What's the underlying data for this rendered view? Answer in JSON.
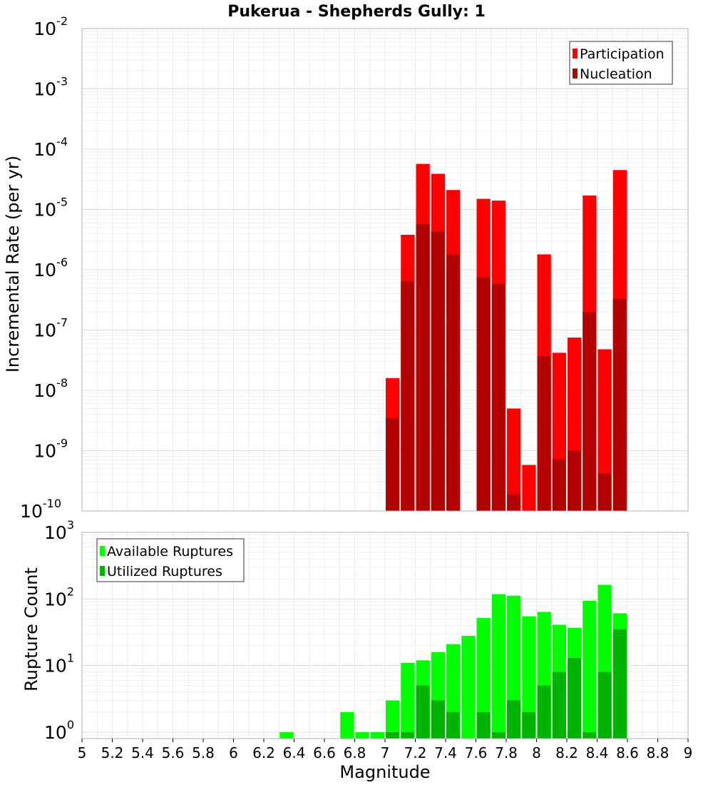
{
  "chart_data": [
    {
      "type": "bar",
      "title": "Pukerua - Shepherds Gully: 1",
      "xlabel": "Magnitude",
      "ylabel": "Incremental Rate (per yr)",
      "yscale": "log",
      "xlim": [
        5,
        9
      ],
      "ylim": [
        1e-10,
        0.01
      ],
      "grid": true,
      "legend_position": "top-right",
      "x_ticks": [
        "5",
        "5.2",
        "5.4",
        "5.6",
        "5.8",
        "6",
        "6.2",
        "6.4",
        "6.6",
        "6.8",
        "7",
        "7.2",
        "7.4",
        "7.6",
        "7.8",
        "8",
        "8.2",
        "8.4",
        "8.6",
        "8.8",
        "9"
      ],
      "y_ticks": [
        {
          "base": "10",
          "exp": "-10",
          "value": 1e-10
        },
        {
          "base": "10",
          "exp": "-9",
          "value": 1e-09
        },
        {
          "base": "10",
          "exp": "-8",
          "value": 1e-08
        },
        {
          "base": "10",
          "exp": "-7",
          "value": 1e-07
        },
        {
          "base": "10",
          "exp": "-6",
          "value": 1e-06
        },
        {
          "base": "10",
          "exp": "-5",
          "value": 1e-05
        },
        {
          "base": "10",
          "exp": "-4",
          "value": 0.0001
        },
        {
          "base": "10",
          "exp": "-3",
          "value": 0.001
        },
        {
          "base": "10",
          "exp": "-2",
          "value": 0.01
        }
      ],
      "series": [
        {
          "name": "Participation",
          "color": "#ff0000",
          "points": [
            {
              "x": 7.0,
              "y": 1.6e-08
            },
            {
              "x": 7.1,
              "y": 3.8e-06
            },
            {
              "x": 7.2,
              "y": 5.7e-05
            },
            {
              "x": 7.3,
              "y": 3.9e-05
            },
            {
              "x": 7.4,
              "y": 2.1e-05
            },
            {
              "x": 7.6,
              "y": 1.5e-05
            },
            {
              "x": 7.7,
              "y": 1.4e-05
            },
            {
              "x": 7.8,
              "y": 5e-09
            },
            {
              "x": 7.9,
              "y": 5.8e-10
            },
            {
              "x": 8.0,
              "y": 1.8e-06
            },
            {
              "x": 8.1,
              "y": 4.2e-08
            },
            {
              "x": 8.2,
              "y": 7.5e-08
            },
            {
              "x": 8.3,
              "y": 1.7e-05
            },
            {
              "x": 8.4,
              "y": 4.8e-08
            },
            {
              "x": 8.5,
              "y": 4.5e-05
            }
          ]
        },
        {
          "name": "Nucleation",
          "color": "#b30000",
          "points": [
            {
              "x": 7.0,
              "y": 3.5e-09
            },
            {
              "x": 7.1,
              "y": 6.5e-07
            },
            {
              "x": 7.2,
              "y": 5.7e-06
            },
            {
              "x": 7.3,
              "y": 4.3e-06
            },
            {
              "x": 7.4,
              "y": 1.8e-06
            },
            {
              "x": 7.6,
              "y": 7.5e-07
            },
            {
              "x": 7.7,
              "y": 5.8e-07
            },
            {
              "x": 7.8,
              "y": 1.9e-10
            },
            {
              "x": 7.9,
              "y": 1e-10
            },
            {
              "x": 8.0,
              "y": 3.7e-08
            },
            {
              "x": 8.1,
              "y": 7.2e-10
            },
            {
              "x": 8.2,
              "y": 1e-09
            },
            {
              "x": 8.3,
              "y": 2e-07
            },
            {
              "x": 8.4,
              "y": 4.2e-10
            },
            {
              "x": 8.5,
              "y": 3.3e-07
            }
          ]
        }
      ]
    },
    {
      "type": "bar",
      "title": "",
      "xlabel": "Magnitude",
      "ylabel": "Rupture Count",
      "yscale": "log",
      "xlim": [
        5,
        9
      ],
      "ylim": [
        0.8,
        1000
      ],
      "grid": true,
      "legend_position": "top-left",
      "y_ticks": [
        {
          "base": "10",
          "exp": "0",
          "value": 1
        },
        {
          "base": "10",
          "exp": "1",
          "value": 10
        },
        {
          "base": "10",
          "exp": "2",
          "value": 100
        },
        {
          "base": "10",
          "exp": "3",
          "value": 1000
        }
      ],
      "series": [
        {
          "name": "Available Ruptures",
          "color": "#00ff00",
          "points": [
            {
              "x": 6.3,
              "y": 1
            },
            {
              "x": 6.7,
              "y": 2
            },
            {
              "x": 6.8,
              "y": 1
            },
            {
              "x": 6.9,
              "y": 1
            },
            {
              "x": 7.0,
              "y": 3
            },
            {
              "x": 7.1,
              "y": 11
            },
            {
              "x": 7.2,
              "y": 12
            },
            {
              "x": 7.3,
              "y": 16
            },
            {
              "x": 7.4,
              "y": 21
            },
            {
              "x": 7.5,
              "y": 28
            },
            {
              "x": 7.6,
              "y": 52
            },
            {
              "x": 7.7,
              "y": 118
            },
            {
              "x": 7.8,
              "y": 112
            },
            {
              "x": 7.9,
              "y": 55
            },
            {
              "x": 8.0,
              "y": 64
            },
            {
              "x": 8.1,
              "y": 41
            },
            {
              "x": 8.2,
              "y": 37
            },
            {
              "x": 8.3,
              "y": 94
            },
            {
              "x": 8.4,
              "y": 163
            },
            {
              "x": 8.5,
              "y": 61
            }
          ]
        },
        {
          "name": "Utilized Ruptures",
          "color": "#00b300",
          "points": [
            {
              "x": 7.0,
              "y": 1
            },
            {
              "x": 7.1,
              "y": 1
            },
            {
              "x": 7.2,
              "y": 5
            },
            {
              "x": 7.3,
              "y": 3
            },
            {
              "x": 7.4,
              "y": 2
            },
            {
              "x": 7.6,
              "y": 2
            },
            {
              "x": 7.7,
              "y": 1
            },
            {
              "x": 7.8,
              "y": 3
            },
            {
              "x": 7.9,
              "y": 2
            },
            {
              "x": 8.0,
              "y": 5
            },
            {
              "x": 8.1,
              "y": 8
            },
            {
              "x": 8.2,
              "y": 13
            },
            {
              "x": 8.3,
              "y": 1
            },
            {
              "x": 8.4,
              "y": 8
            },
            {
              "x": 8.5,
              "y": 35
            }
          ]
        }
      ]
    }
  ]
}
